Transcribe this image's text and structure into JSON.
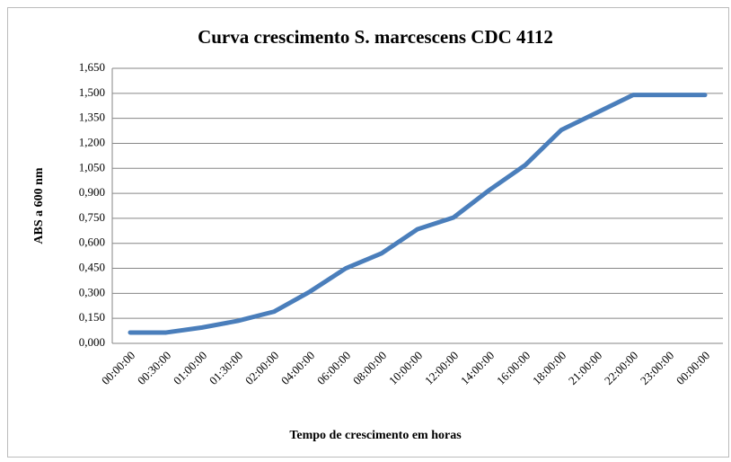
{
  "chart_data": {
    "type": "line",
    "title": "Curva crescimento S. marcescens CDC 4112",
    "x_label": "Tempo de crescimento em horas",
    "y_label": "ABS a 600 nm",
    "categories": [
      "00:00:00",
      "00:30:00",
      "01:00:00",
      "01:30:00",
      "02:00:00",
      "04:00:00",
      "06:00:00",
      "08:00:00",
      "10:00:00",
      "12:00:00",
      "14:00:00",
      "16:00:00",
      "18:00:00",
      "21:00:00",
      "22:00:00",
      "23:00:00",
      "00:00:00"
    ],
    "series": [
      {
        "name": "ABS",
        "color": "#4a7ebb",
        "values": [
          0.065,
          0.065,
          0.095,
          0.135,
          0.19,
          0.31,
          0.45,
          0.54,
          0.685,
          0.755,
          0.92,
          1.07,
          1.28,
          1.385,
          1.49,
          1.49,
          1.49
        ]
      }
    ],
    "ylim": [
      0,
      1.65
    ],
    "yticks": [
      {
        "value": 0,
        "label": "0,000"
      },
      {
        "value": 0.15,
        "label": "0,150"
      },
      {
        "value": 0.3,
        "label": "0,300"
      },
      {
        "value": 0.45,
        "label": "0,450"
      },
      {
        "value": 0.6,
        "label": "0,600"
      },
      {
        "value": 0.75,
        "label": "0,750"
      },
      {
        "value": 0.9,
        "label": "0,900"
      },
      {
        "value": 1.05,
        "label": "1,050"
      },
      {
        "value": 1.2,
        "label": "1,200"
      },
      {
        "value": 1.35,
        "label": "1,350"
      },
      {
        "value": 1.5,
        "label": "1,500"
      },
      {
        "value": 1.65,
        "label": "1,650"
      }
    ],
    "grid": true
  }
}
